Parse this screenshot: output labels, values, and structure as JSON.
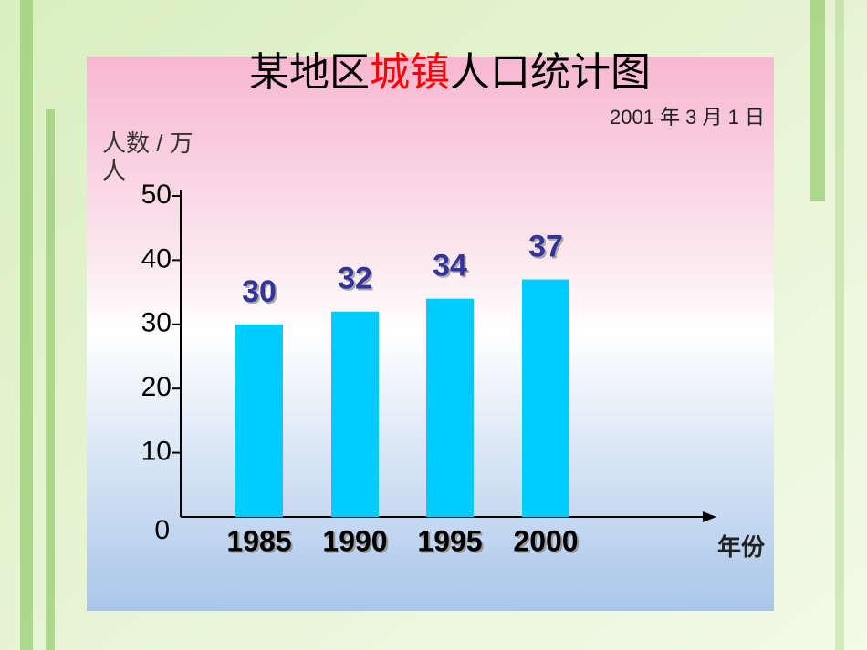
{
  "chart_data": {
    "type": "bar",
    "title": [
      "某地区",
      "城镇",
      "人口统计图"
    ],
    "subtitle": "2001 年 3 月 1 日",
    "y_label": "人数 / 万人",
    "x_label": "年份",
    "categories": [
      "1985",
      "1990",
      "1995",
      "2000"
    ],
    "values": [
      30,
      32,
      34,
      37
    ],
    "color": "#00ccff",
    "ylim": [
      0,
      50
    ],
    "yticks": [
      0,
      10,
      20,
      30,
      40,
      50
    ],
    "grid": false
  }
}
